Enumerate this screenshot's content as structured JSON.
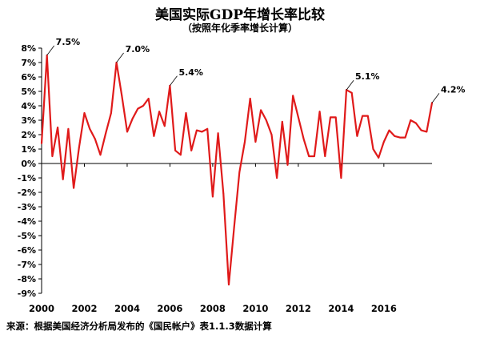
{
  "title": "美国实际GDP年增长率比较",
  "subtitle": "（按照年化季率增长计算）",
  "source": "来源：根据美国经济分析局发布的《国民帐户》表1.1.3数据计算",
  "colors": {
    "line": "#e01a1a",
    "axis": "#000000",
    "text": "#000000"
  },
  "chart_data": {
    "type": "line",
    "title": "美国实际GDP年增长率比较",
    "subtitle": "（按照年化季率增长计算）",
    "xlabel": "",
    "ylabel": "",
    "xlim": [
      2000,
      2018.25
    ],
    "ylim": [
      -9,
      8
    ],
    "grid": false,
    "x_ticks": [
      2000,
      2002,
      2004,
      2006,
      2008,
      2010,
      2012,
      2014,
      2016
    ],
    "x_tick_labels": [
      "2000",
      "2002",
      "2004",
      "2006",
      "2008",
      "2010",
      "2012",
      "2014",
      "2016"
    ],
    "y_ticks": [
      8,
      7,
      6,
      5,
      4,
      3,
      2,
      1,
      0,
      -1,
      -2,
      -3,
      -4,
      -5,
      -6,
      -7,
      -8,
      -9
    ],
    "y_tick_labels": [
      "8%",
      "7%",
      "6%",
      "5%",
      "4%",
      "3%",
      "2%",
      "1%",
      "0%",
      "-1%",
      "-2%",
      "-3%",
      "-4%",
      "-5%",
      "-6%",
      "-7%",
      "-8%",
      "-9%"
    ],
    "series": [
      {
        "x": [
          2000.0,
          2000.25,
          2000.5,
          2000.75,
          2001.0,
          2001.25,
          2001.5,
          2001.75,
          2002.0,
          2002.25,
          2002.5,
          2002.75,
          2003.0,
          2003.25,
          2003.5,
          2003.75,
          2004.0,
          2004.25,
          2004.5,
          2004.75,
          2005.0,
          2005.25,
          2005.5,
          2005.75,
          2006.0,
          2006.25,
          2006.5,
          2006.75,
          2007.0,
          2007.25,
          2007.5,
          2007.75,
          2008.0,
          2008.25,
          2008.5,
          2008.75,
          2009.0,
          2009.25,
          2009.5,
          2009.75,
          2010.0,
          2010.25,
          2010.5,
          2010.75,
          2011.0,
          2011.25,
          2011.5,
          2011.75,
          2012.0,
          2012.25,
          2012.5,
          2012.75,
          2013.0,
          2013.25,
          2013.5,
          2013.75,
          2014.0,
          2014.25,
          2014.5,
          2014.75,
          2015.0,
          2015.25,
          2015.5,
          2015.75,
          2016.0,
          2016.25,
          2016.5,
          2016.75,
          2017.0,
          2017.25,
          2017.5,
          2017.75,
          2018.0,
          2018.25
        ],
        "values": [
          1.4,
          7.5,
          0.5,
          2.5,
          -1.1,
          2.4,
          -1.7,
          1.1,
          3.5,
          2.4,
          1.7,
          0.6,
          2.1,
          3.5,
          7.0,
          4.7,
          2.2,
          3.1,
          3.8,
          4.0,
          4.5,
          1.9,
          3.6,
          2.6,
          5.4,
          0.9,
          0.6,
          3.5,
          0.9,
          2.3,
          2.2,
          2.4,
          -2.3,
          2.1,
          -2.1,
          -8.4,
          -4.4,
          -0.6,
          1.5,
          4.5,
          1.5,
          3.7,
          3.0,
          2.0,
          -1.0,
          2.9,
          -0.1,
          4.7,
          3.2,
          1.7,
          0.5,
          0.5,
          3.6,
          0.5,
          3.2,
          3.2,
          -1.0,
          5.1,
          4.9,
          1.9,
          3.3,
          3.3,
          1.0,
          0.4,
          1.5,
          2.3,
          1.9,
          1.8,
          1.8,
          3.0,
          2.8,
          2.3,
          2.2,
          4.2
        ]
      }
    ],
    "annotations": [
      {
        "x": 2000.25,
        "y": 7.5,
        "text": "7.5%"
      },
      {
        "x": 2003.5,
        "y": 7.0,
        "text": "7.0%"
      },
      {
        "x": 2006.0,
        "y": 5.4,
        "text": "5.4%"
      },
      {
        "x": 2014.25,
        "y": 5.1,
        "text": "5.1%"
      },
      {
        "x": 2018.25,
        "y": 4.2,
        "text": "4.2%"
      }
    ]
  }
}
